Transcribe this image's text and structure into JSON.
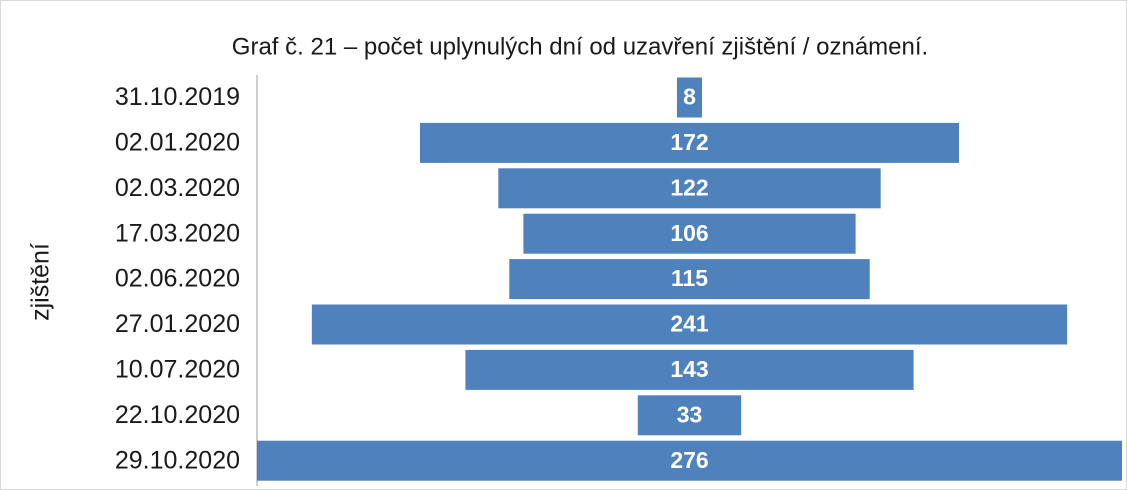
{
  "chart_data": {
    "type": "funnel",
    "title": "Graf č. 21 – počet uplynulých dní od uzavření zjištění / oznámení.",
    "y_label": "zjištění",
    "categories": [
      "31.10.2019",
      "02.01.2020",
      "02.03.2020",
      "17.03.2020",
      "02.06.2020",
      "27.01.2020",
      "10.07.2020",
      "22.10.2020",
      "29.10.2020"
    ],
    "values": [
      8,
      172,
      122,
      106,
      115,
      241,
      143,
      33,
      276
    ],
    "color": "#4f81bd"
  }
}
